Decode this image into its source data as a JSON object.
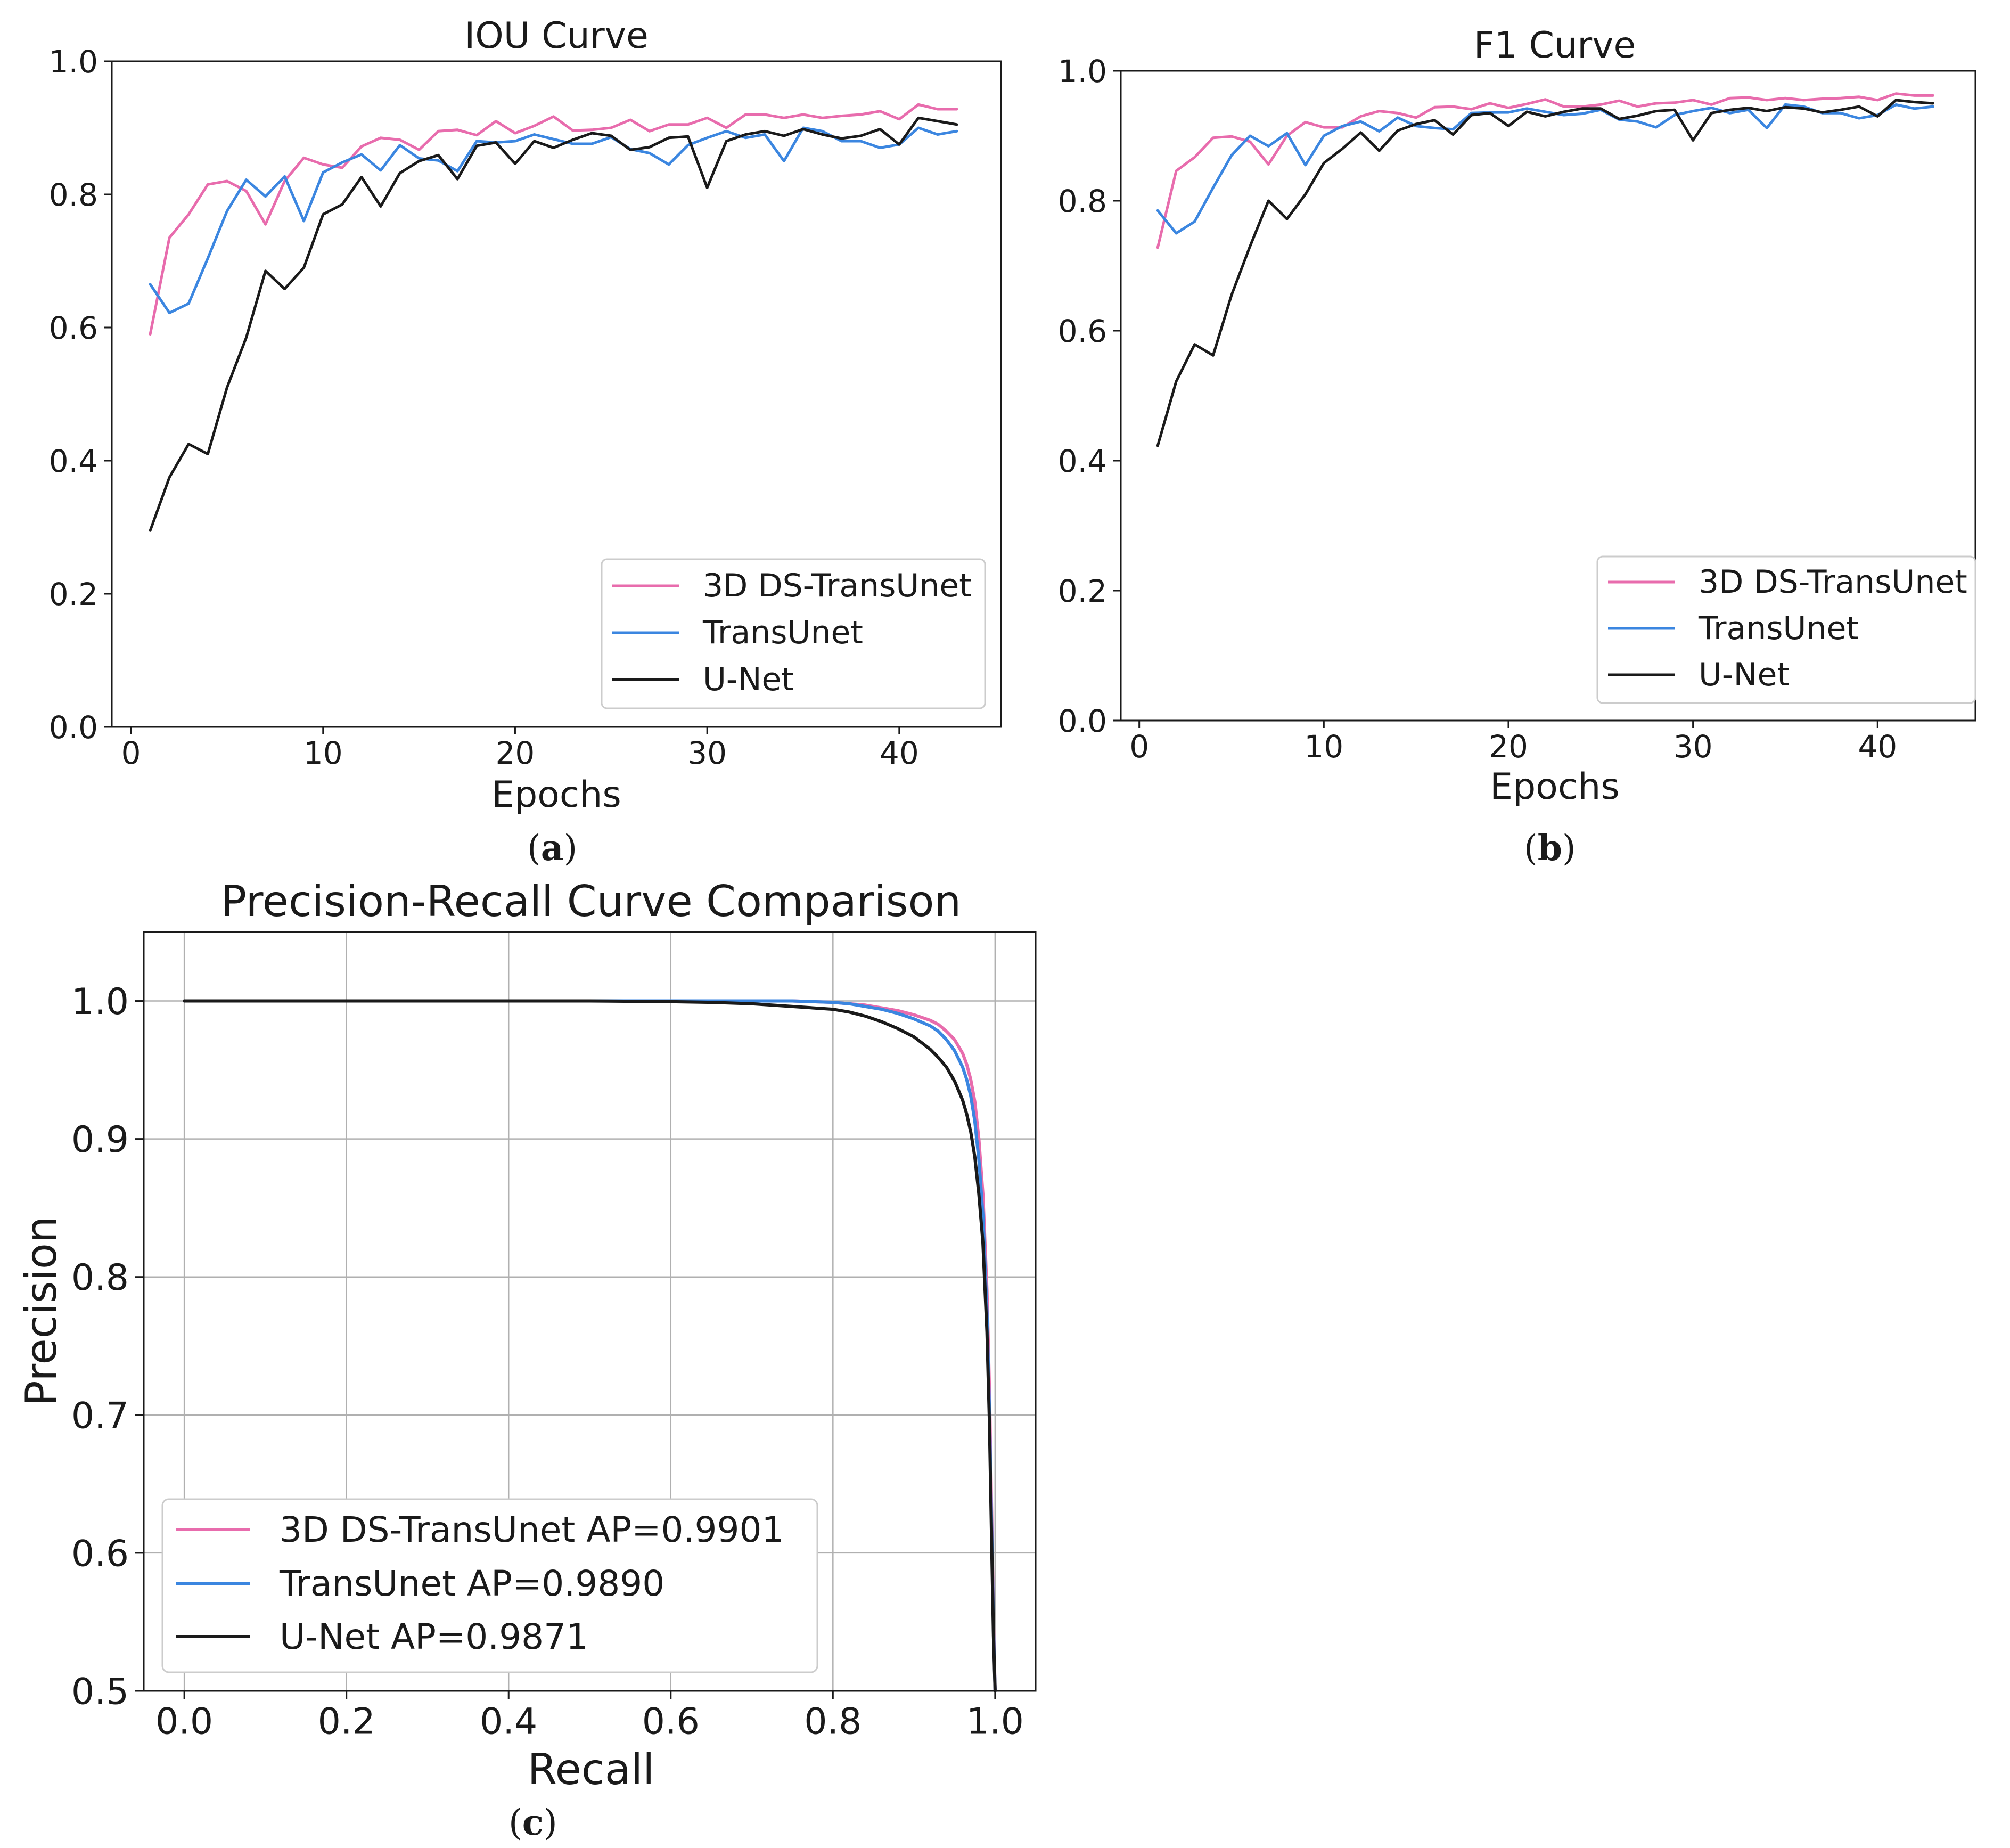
{
  "chart_data": [
    {
      "id": "iou",
      "type": "line",
      "title": "IOU Curve",
      "xlabel": "Epochs",
      "ylabel": "",
      "caption_letter": "a",
      "xlim": [
        -1,
        45.3
      ],
      "ylim": [
        0.0,
        1.0
      ],
      "xticks": [
        0,
        10,
        20,
        30,
        40
      ],
      "xtick_labels": [
        "0",
        "10",
        "20",
        "30",
        "40"
      ],
      "yticks": [
        0.0,
        0.2,
        0.4,
        0.6,
        0.8,
        1.0
      ],
      "ytick_labels": [
        "0.0",
        "0.2",
        "0.4",
        "0.6",
        "0.8",
        "1.0"
      ],
      "grid": false,
      "legend_position": "lower-right",
      "x": [
        1,
        2,
        3,
        4,
        5,
        6,
        7,
        8,
        9,
        10,
        11,
        12,
        13,
        14,
        15,
        16,
        17,
        18,
        19,
        20,
        21,
        22,
        23,
        24,
        25,
        26,
        27,
        28,
        29,
        30,
        31,
        32,
        33,
        34,
        35,
        36,
        37,
        38,
        39,
        40,
        41,
        42,
        43
      ],
      "series": [
        {
          "name": "3D DS-TransUnet",
          "color": "#e86cad",
          "values": [
            0.59,
            0.735,
            0.77,
            0.815,
            0.82,
            0.805,
            0.755,
            0.82,
            0.855,
            0.845,
            0.84,
            0.872,
            0.885,
            0.882,
            0.867,
            0.895,
            0.897,
            0.889,
            0.91,
            0.892,
            0.903,
            0.917,
            0.896,
            0.897,
            0.9,
            0.912,
            0.895,
            0.905,
            0.905,
            0.915,
            0.9,
            0.92,
            0.92,
            0.915,
            0.92,
            0.915,
            0.918,
            0.92,
            0.925,
            0.913,
            0.935,
            0.928,
            0.928
          ]
        },
        {
          "name": "TransUnet",
          "color": "#3b86e0",
          "values": [
            0.665,
            0.622,
            0.636,
            0.704,
            0.775,
            0.822,
            0.797,
            0.827,
            0.76,
            0.833,
            0.848,
            0.86,
            0.836,
            0.874,
            0.854,
            0.851,
            0.835,
            0.88,
            0.878,
            0.88,
            0.89,
            0.883,
            0.876,
            0.876,
            0.886,
            0.868,
            0.862,
            0.845,
            0.874,
            0.885,
            0.895,
            0.885,
            0.89,
            0.85,
            0.9,
            0.895,
            0.88,
            0.88,
            0.87,
            0.875,
            0.9,
            0.89,
            0.895
          ]
        },
        {
          "name": "U-Net",
          "color": "#1a1a1a",
          "values": [
            0.295,
            0.375,
            0.425,
            0.41,
            0.51,
            0.585,
            0.685,
            0.658,
            0.69,
            0.77,
            0.785,
            0.826,
            0.782,
            0.832,
            0.85,
            0.859,
            0.823,
            0.873,
            0.878,
            0.846,
            0.88,
            0.87,
            0.882,
            0.892,
            0.888,
            0.867,
            0.871,
            0.885,
            0.887,
            0.81,
            0.88,
            0.89,
            0.895,
            0.888,
            0.898,
            0.89,
            0.884,
            0.888,
            0.898,
            0.875,
            0.915,
            0.91,
            0.905
          ]
        }
      ]
    },
    {
      "id": "f1",
      "type": "line",
      "title": "F1 Curve",
      "xlabel": "Epochs",
      "ylabel": "",
      "caption_letter": "b",
      "xlim": [
        -1,
        45.3
      ],
      "ylim": [
        0.0,
        1.0
      ],
      "xticks": [
        0,
        10,
        20,
        30,
        40
      ],
      "xtick_labels": [
        "0",
        "10",
        "20",
        "30",
        "40"
      ],
      "yticks": [
        0.0,
        0.2,
        0.4,
        0.6,
        0.8,
        1.0
      ],
      "ytick_labels": [
        "0.0",
        "0.2",
        "0.4",
        "0.6",
        "0.8",
        "1.0"
      ],
      "grid": false,
      "legend_position": "lower-right",
      "x": [
        1,
        2,
        3,
        4,
        5,
        6,
        7,
        8,
        9,
        10,
        11,
        12,
        13,
        14,
        15,
        16,
        17,
        18,
        19,
        20,
        21,
        22,
        23,
        24,
        25,
        26,
        27,
        28,
        29,
        30,
        31,
        32,
        33,
        34,
        35,
        36,
        37,
        38,
        39,
        40,
        41,
        42,
        43
      ],
      "series": [
        {
          "name": "3D DS-TransUnet",
          "color": "#e86cad",
          "values": [
            0.728,
            0.846,
            0.867,
            0.897,
            0.899,
            0.891,
            0.856,
            0.9,
            0.921,
            0.913,
            0.913,
            0.93,
            0.938,
            0.935,
            0.928,
            0.944,
            0.945,
            0.941,
            0.95,
            0.943,
            0.949,
            0.956,
            0.945,
            0.945,
            0.948,
            0.954,
            0.945,
            0.95,
            0.951,
            0.955,
            0.948,
            0.958,
            0.959,
            0.955,
            0.958,
            0.955,
            0.957,
            0.958,
            0.96,
            0.955,
            0.965,
            0.962,
            0.962
          ]
        },
        {
          "name": "TransUnet",
          "color": "#3b86e0",
          "values": [
            0.785,
            0.75,
            0.768,
            0.82,
            0.87,
            0.9,
            0.884,
            0.904,
            0.855,
            0.9,
            0.915,
            0.922,
            0.907,
            0.928,
            0.915,
            0.912,
            0.91,
            0.935,
            0.936,
            0.936,
            0.942,
            0.937,
            0.932,
            0.934,
            0.94,
            0.925,
            0.922,
            0.913,
            0.932,
            0.938,
            0.943,
            0.935,
            0.94,
            0.912,
            0.948,
            0.945,
            0.935,
            0.935,
            0.927,
            0.932,
            0.948,
            0.942,
            0.945
          ]
        },
        {
          "name": "U-Net",
          "color": "#1a1a1a",
          "values": [
            0.423,
            0.522,
            0.579,
            0.562,
            0.655,
            0.73,
            0.8,
            0.772,
            0.81,
            0.858,
            0.88,
            0.905,
            0.877,
            0.908,
            0.918,
            0.924,
            0.902,
            0.932,
            0.935,
            0.915,
            0.937,
            0.93,
            0.937,
            0.942,
            0.942,
            0.926,
            0.931,
            0.938,
            0.94,
            0.893,
            0.935,
            0.94,
            0.943,
            0.938,
            0.944,
            0.942,
            0.936,
            0.94,
            0.945,
            0.93,
            0.955,
            0.952,
            0.95
          ]
        }
      ]
    },
    {
      "id": "pr",
      "type": "line",
      "title": "Precision-Recall Curve Comparison",
      "xlabel": "Recall",
      "ylabel": "Precision",
      "caption_letter": "c",
      "xlim": [
        -0.05,
        1.05
      ],
      "ylim": [
        0.5,
        1.05
      ],
      "xticks": [
        0.0,
        0.2,
        0.4,
        0.6,
        0.8,
        1.0
      ],
      "xtick_labels": [
        "0.0",
        "0.2",
        "0.4",
        "0.6",
        "0.8",
        "1.0"
      ],
      "yticks": [
        0.5,
        0.6,
        0.7,
        0.8,
        0.9,
        1.0
      ],
      "ytick_labels": [
        "0.5",
        "0.6",
        "0.7",
        "0.8",
        "0.9",
        "1.0"
      ],
      "grid": true,
      "legend_position": "lower-left",
      "x": [
        0.0,
        0.1,
        0.2,
        0.3,
        0.4,
        0.5,
        0.6,
        0.65,
        0.7,
        0.75,
        0.8,
        0.82,
        0.84,
        0.86,
        0.88,
        0.9,
        0.92,
        0.93,
        0.94,
        0.95,
        0.96,
        0.965,
        0.97,
        0.975,
        0.98,
        0.985,
        0.99,
        0.993,
        0.996,
        0.998,
        1.0
      ],
      "series": [
        {
          "name": "3D DS-TransUnet AP=0.9901",
          "color": "#e86cad",
          "values": [
            1.0,
            1.0,
            1.0,
            1.0,
            1.0,
            1.0,
            1.0,
            1.0,
            1.0,
            1.0,
            0.999,
            0.998,
            0.997,
            0.995,
            0.993,
            0.99,
            0.986,
            0.983,
            0.978,
            0.972,
            0.962,
            0.954,
            0.943,
            0.927,
            0.9,
            0.86,
            0.79,
            0.72,
            0.62,
            0.55,
            0.5
          ]
        },
        {
          "name": "TransUnet AP=0.9890",
          "color": "#3b86e0",
          "values": [
            1.0,
            1.0,
            1.0,
            1.0,
            1.0,
            1.0,
            1.0,
            1.0,
            1.0,
            1.0,
            0.999,
            0.998,
            0.996,
            0.994,
            0.991,
            0.987,
            0.982,
            0.978,
            0.972,
            0.964,
            0.952,
            0.943,
            0.931,
            0.913,
            0.885,
            0.845,
            0.775,
            0.705,
            0.61,
            0.545,
            0.5
          ]
        },
        {
          "name": "U-Net AP=0.9871",
          "color": "#1a1a1a",
          "values": [
            1.0,
            1.0,
            1.0,
            1.0,
            1.0,
            1.0,
            0.9995,
            0.999,
            0.998,
            0.996,
            0.994,
            0.992,
            0.989,
            0.985,
            0.98,
            0.974,
            0.965,
            0.959,
            0.952,
            0.942,
            0.928,
            0.918,
            0.905,
            0.887,
            0.86,
            0.825,
            0.76,
            0.695,
            0.6,
            0.54,
            0.5
          ]
        }
      ]
    }
  ]
}
